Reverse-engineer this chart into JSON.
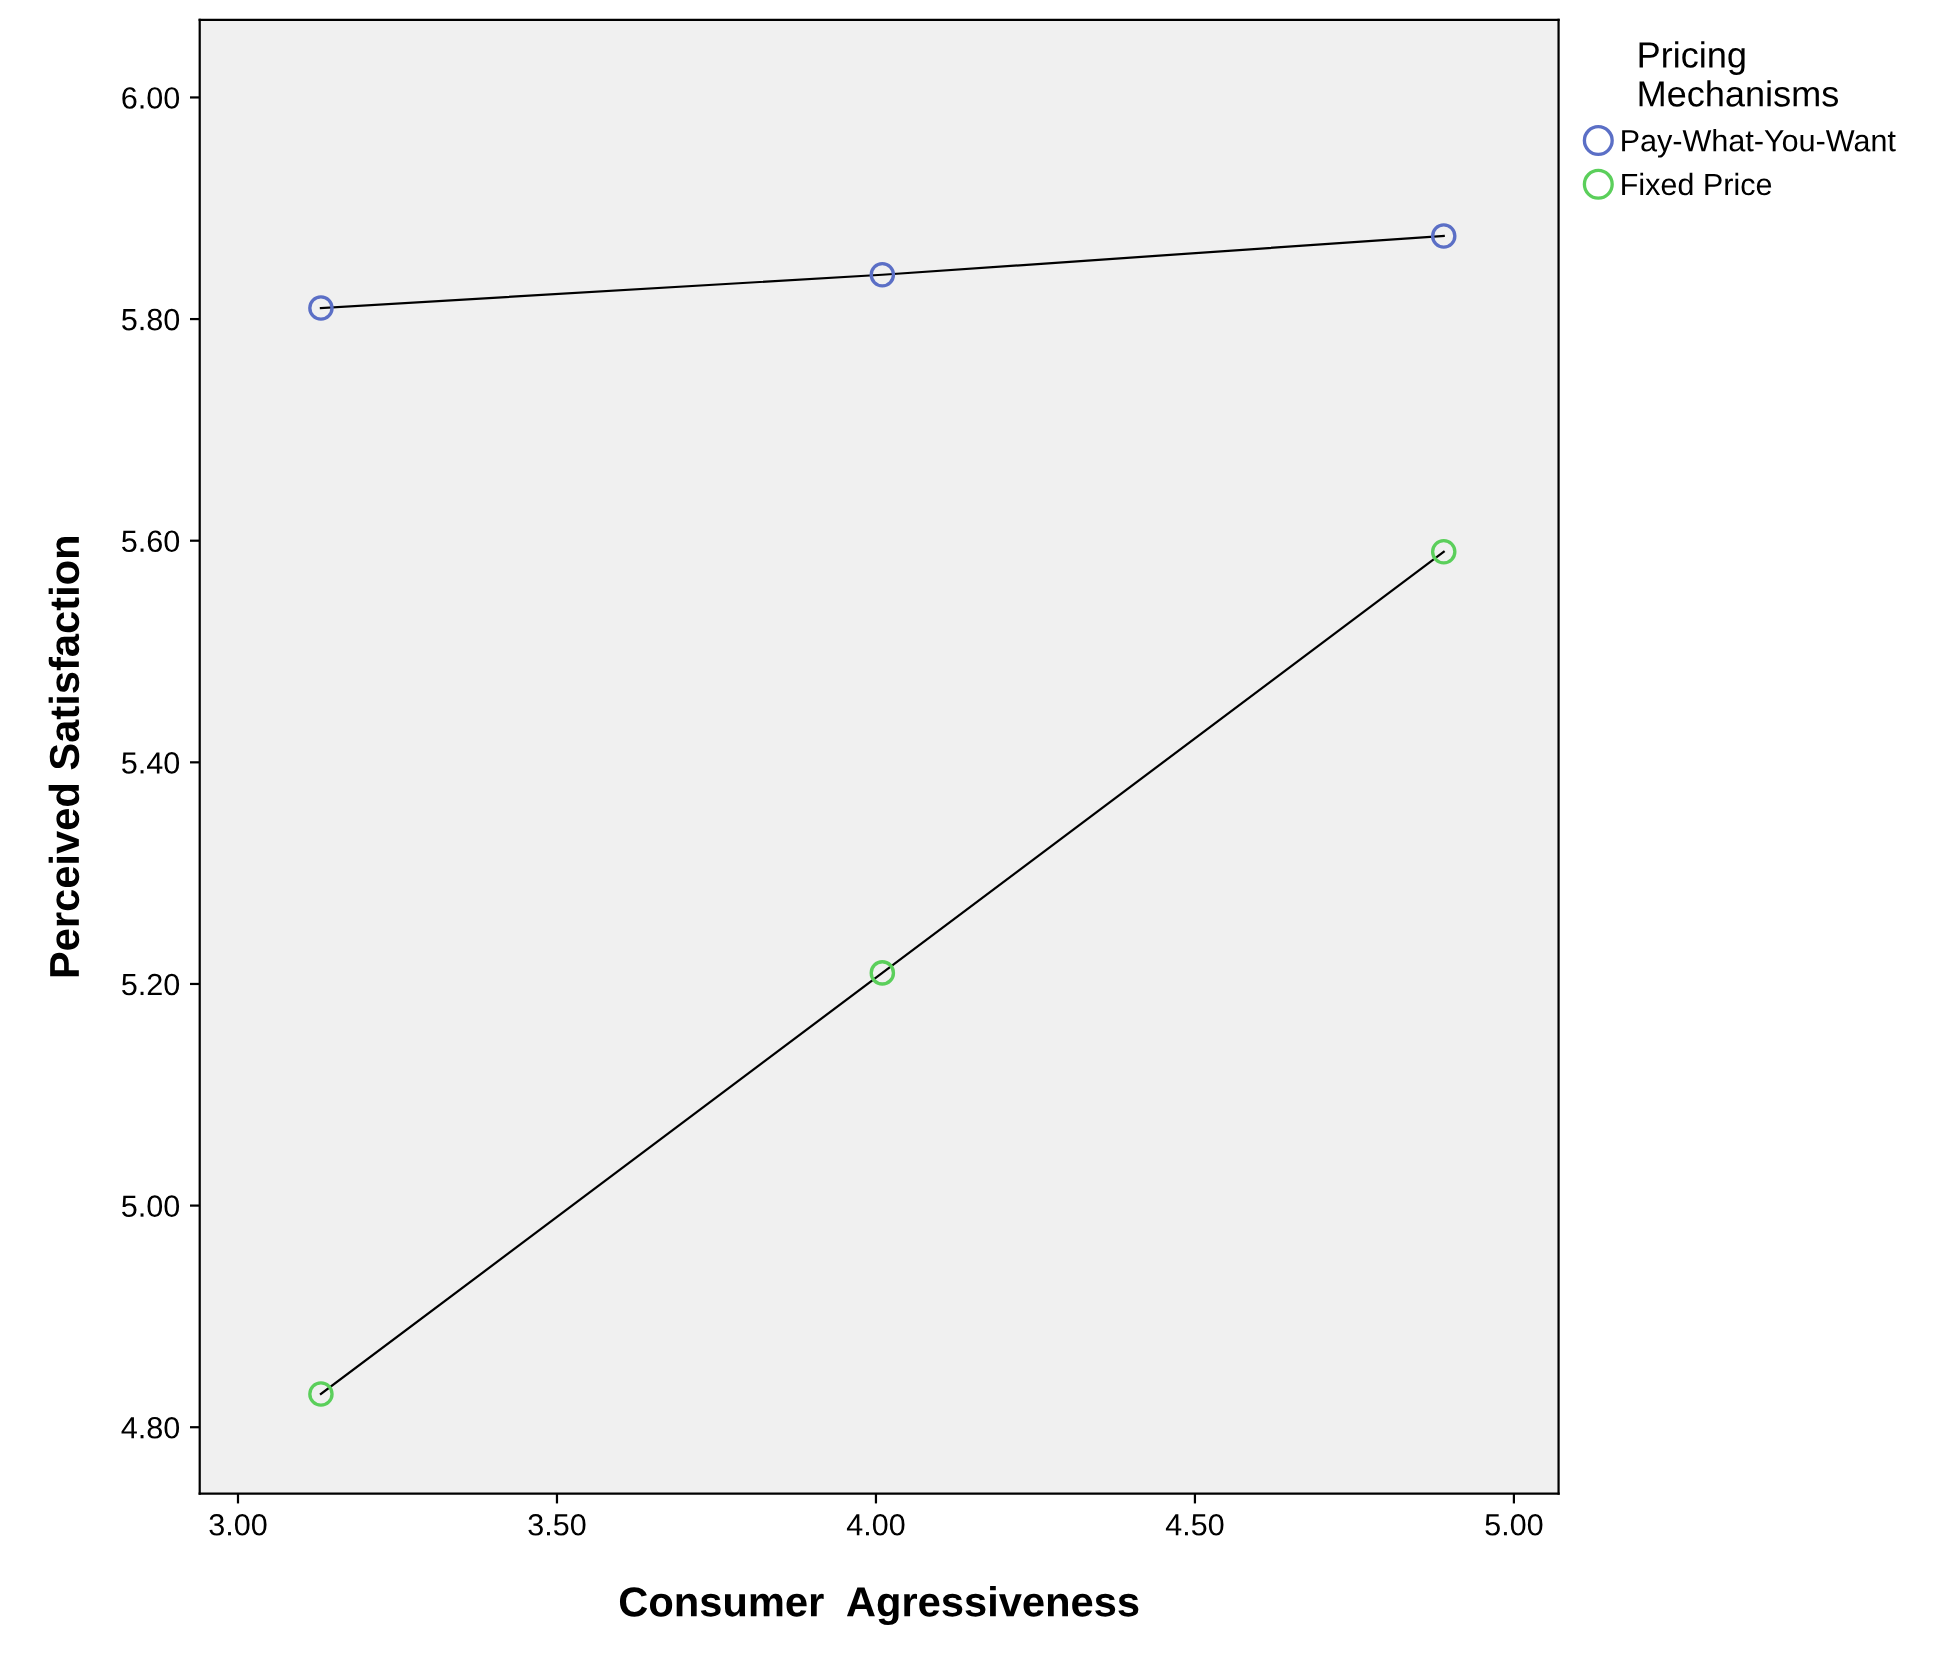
{
  "chart_data": {
    "type": "line",
    "xlabel": "Consumer  Agressiveness",
    "ylabel": "Perceived Satisfaction",
    "legend_title": "Pricing\nMechanisms",
    "x": [
      3.13,
      4.01,
      4.89
    ],
    "series": [
      {
        "name": "Pay-What-You-Want",
        "color": "#5b6fc6",
        "values": [
          5.81,
          5.84,
          5.875
        ]
      },
      {
        "name": "Fixed Price",
        "color": "#5bcf5b",
        "values": [
          4.83,
          5.21,
          5.59
        ]
      }
    ],
    "xlim": [
      2.94,
      5.07
    ],
    "ylim": [
      4.74,
      6.07
    ],
    "xticks": [
      {
        "value": 3,
        "label": "3.00"
      },
      {
        "value": 3.5,
        "label": "3.50"
      },
      {
        "value": 4,
        "label": "4.00"
      },
      {
        "value": 4.5,
        "label": "4.50"
      },
      {
        "value": 5,
        "label": "5.00"
      }
    ],
    "yticks": [
      {
        "value": 4.8,
        "label": "4.80"
      },
      {
        "value": 5.0,
        "label": "5.00"
      },
      {
        "value": 5.2,
        "label": "5.20"
      },
      {
        "value": 5.4,
        "label": "5.40"
      },
      {
        "value": 5.6,
        "label": "5.60"
      },
      {
        "value": 5.8,
        "label": "5.80"
      },
      {
        "value": 6.0,
        "label": "6.00"
      }
    ],
    "grid": false,
    "legend": "top right",
    "marker": "circle",
    "line_style": "solid"
  }
}
